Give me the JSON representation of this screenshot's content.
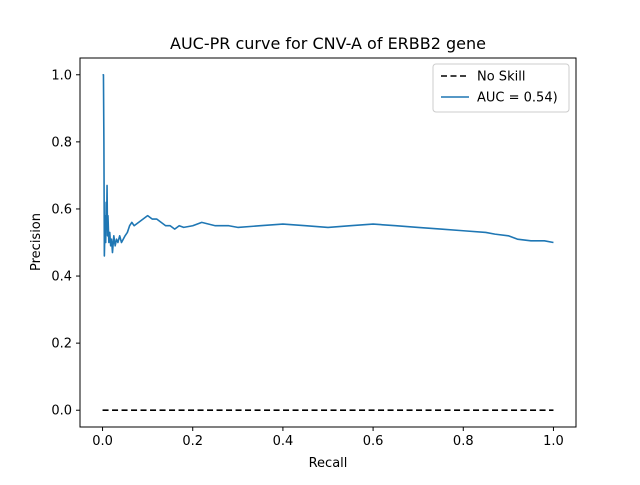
{
  "chart_data": {
    "type": "line",
    "title": "AUC-PR curve for CNV-A of ERBB2 gene",
    "xlabel": "Recall",
    "ylabel": "Precision",
    "xlim": [
      -0.05,
      1.05
    ],
    "ylim": [
      -0.05,
      1.05
    ],
    "xticks": [
      0.0,
      0.2,
      0.4,
      0.6,
      0.8,
      1.0
    ],
    "yticks": [
      0.0,
      0.2,
      0.4,
      0.6,
      0.8,
      1.0
    ],
    "xtick_labels": [
      "0.0",
      "0.2",
      "0.4",
      "0.6",
      "0.8",
      "1.0"
    ],
    "ytick_labels": [
      "0.0",
      "0.2",
      "0.4",
      "0.6",
      "0.8",
      "1.0"
    ],
    "grid": false,
    "legend_placement": "top-right",
    "series": [
      {
        "name": "No Skill",
        "style": "dashed",
        "color": "#000000",
        "x": [
          0.0,
          1.0
        ],
        "y": [
          0.0,
          0.0
        ]
      },
      {
        "name": "AUC = 0.54)",
        "style": "solid",
        "color": "#1f77b4",
        "x": [
          0.0,
          0.002,
          0.003,
          0.004,
          0.005,
          0.006,
          0.007,
          0.008,
          0.009,
          0.01,
          0.011,
          0.012,
          0.013,
          0.014,
          0.016,
          0.018,
          0.02,
          0.022,
          0.025,
          0.028,
          0.031,
          0.034,
          0.038,
          0.042,
          0.046,
          0.05,
          0.055,
          0.06,
          0.065,
          0.07,
          0.08,
          0.09,
          0.1,
          0.11,
          0.12,
          0.13,
          0.14,
          0.15,
          0.16,
          0.17,
          0.18,
          0.2,
          0.22,
          0.25,
          0.28,
          0.3,
          0.35,
          0.4,
          0.45,
          0.5,
          0.55,
          0.6,
          0.65,
          0.7,
          0.75,
          0.8,
          0.85,
          0.87,
          0.9,
          0.92,
          0.95,
          0.98,
          1.0
        ],
        "y": [
          1.0,
          1.0,
          0.8,
          0.46,
          0.52,
          0.58,
          0.5,
          0.62,
          0.55,
          0.67,
          0.52,
          0.58,
          0.54,
          0.5,
          0.53,
          0.49,
          0.51,
          0.47,
          0.52,
          0.49,
          0.51,
          0.5,
          0.52,
          0.5,
          0.51,
          0.52,
          0.53,
          0.55,
          0.56,
          0.55,
          0.56,
          0.57,
          0.58,
          0.57,
          0.57,
          0.56,
          0.55,
          0.55,
          0.54,
          0.55,
          0.545,
          0.55,
          0.56,
          0.55,
          0.55,
          0.545,
          0.55,
          0.555,
          0.55,
          0.545,
          0.55,
          0.555,
          0.55,
          0.545,
          0.54,
          0.535,
          0.53,
          0.525,
          0.52,
          0.51,
          0.505,
          0.505,
          0.5
        ]
      }
    ]
  }
}
